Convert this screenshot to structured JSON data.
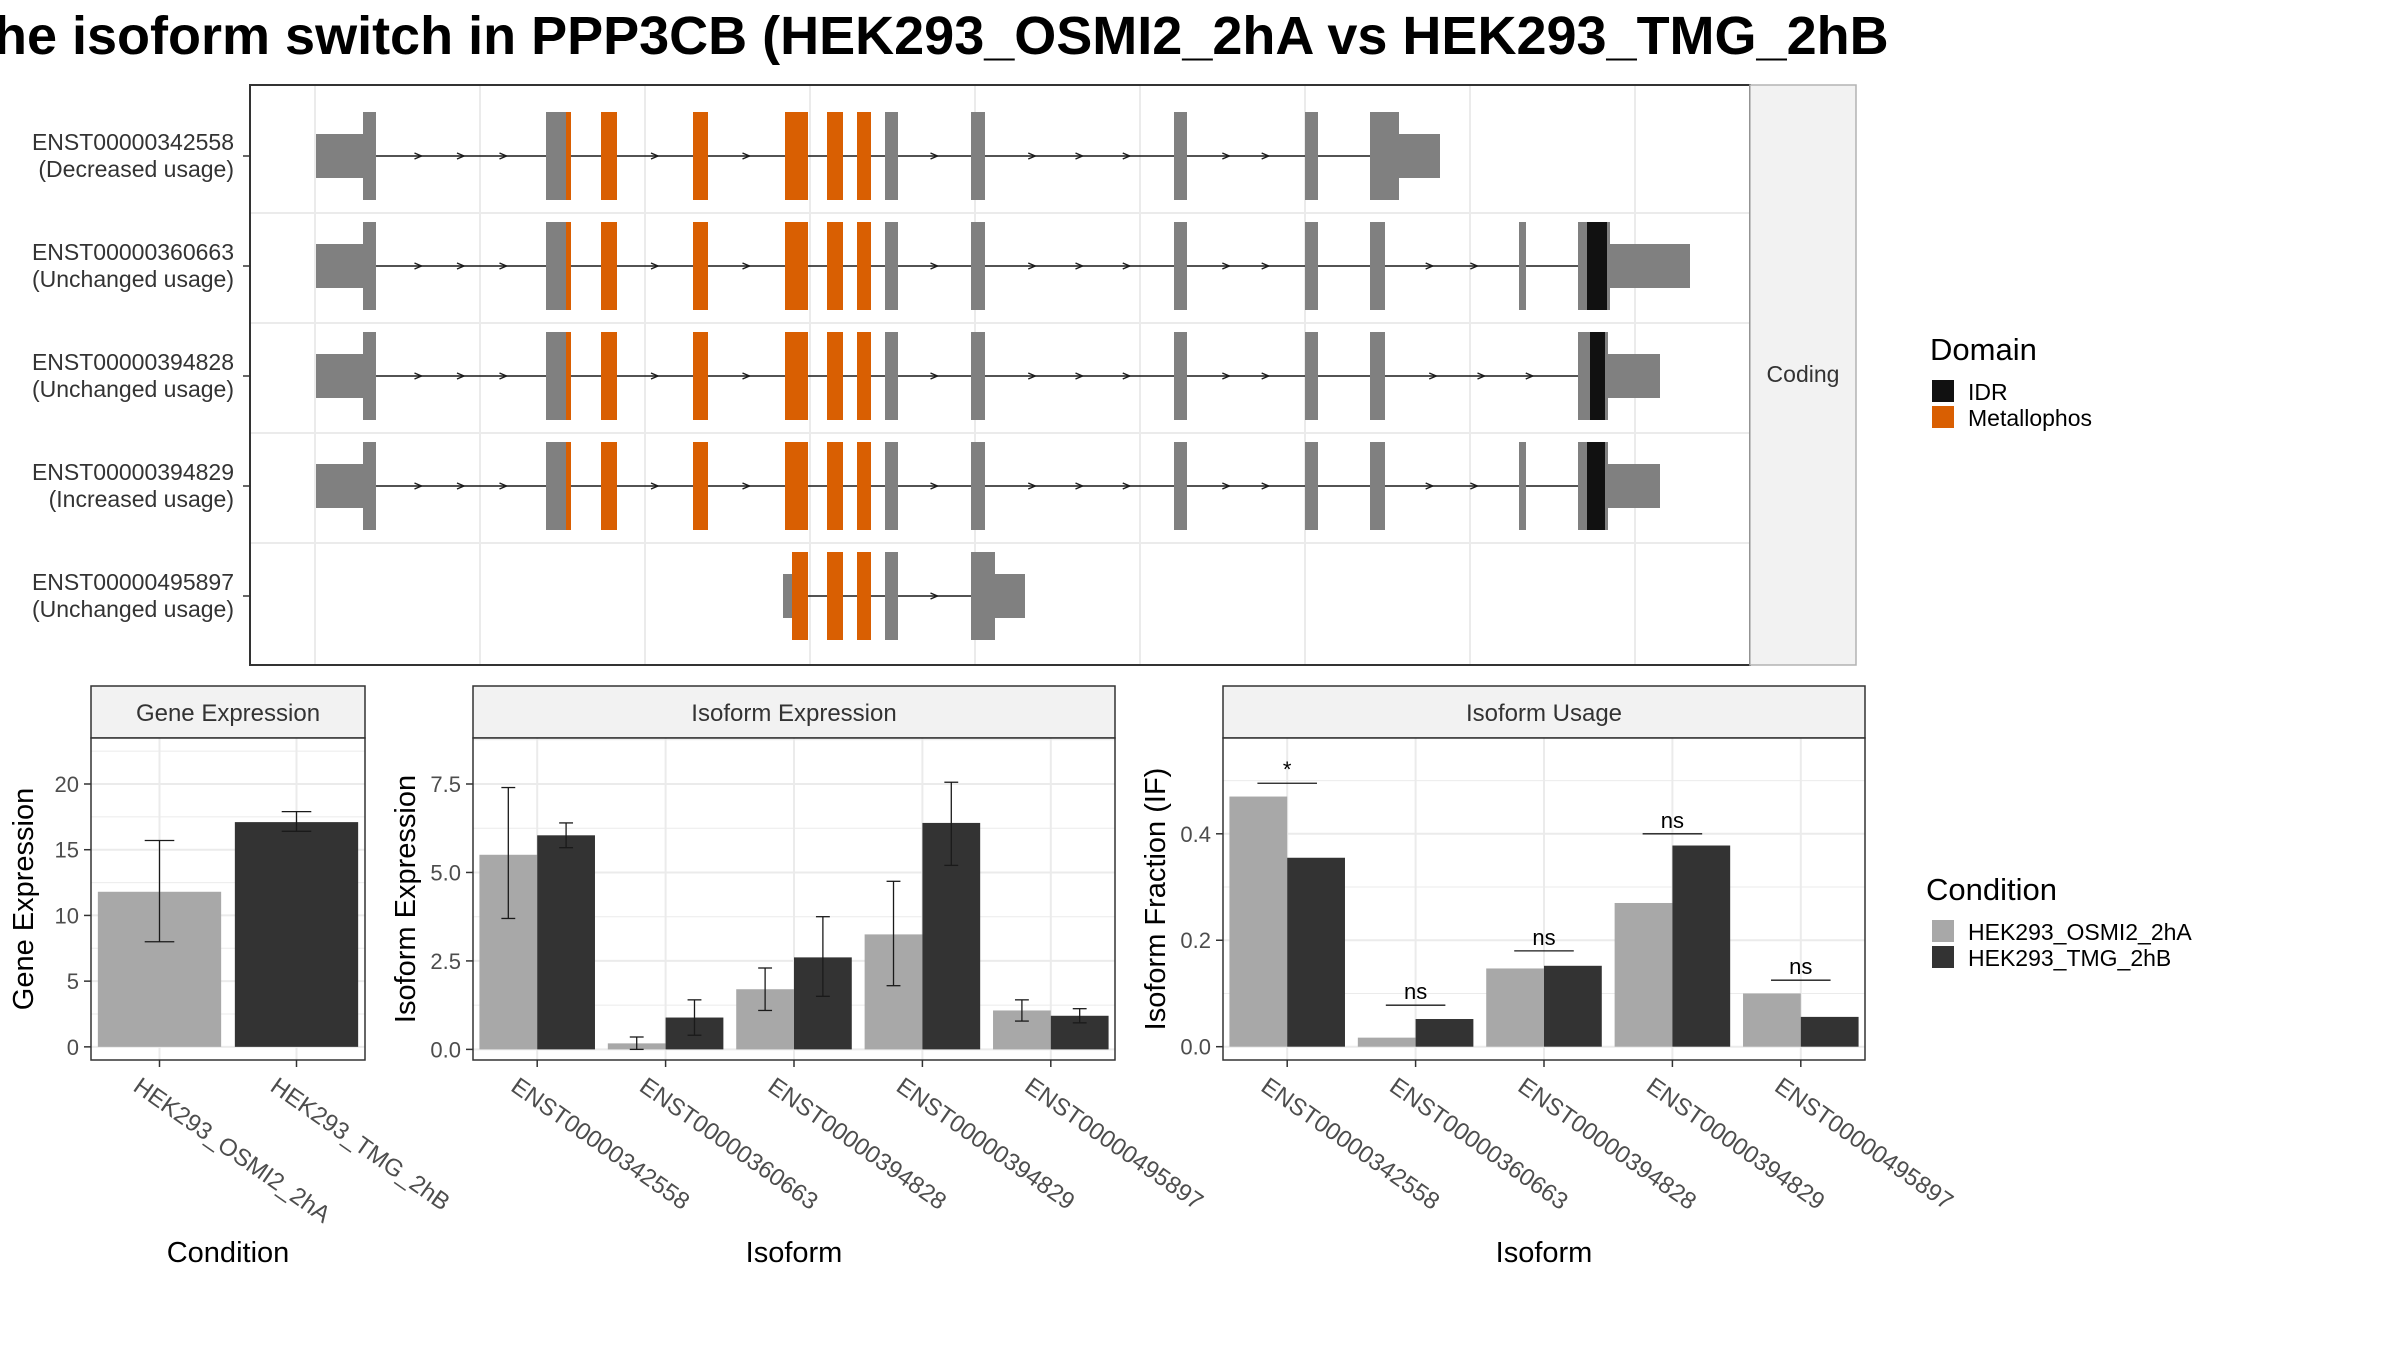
{
  "title": "he isoform switch in PPP3CB (HEK293_OSMI2_2hA vs HEK293_TMG_2hB",
  "colors": {
    "exon": "#808080",
    "idr": "#111111",
    "metallophos": "#d95f02",
    "cond1": "#a8a8a8",
    "cond2": "#333333",
    "grid": "#ebebeb",
    "strip_bg": "#f2f2f2",
    "panel_border": "#333333"
  },
  "structure": {
    "panel_label": "Coding",
    "transcripts": [
      {
        "id": "ENST00000342558",
        "usage": "(Decreased usage)"
      },
      {
        "id": "ENST00000360663",
        "usage": "(Unchanged usage)"
      },
      {
        "id": "ENST00000394828",
        "usage": "(Unchanged usage)"
      },
      {
        "id": "ENST00000394829",
        "usage": "(Increased usage)"
      },
      {
        "id": "ENST00000495897",
        "usage": "(Unchanged usage)"
      }
    ]
  },
  "legend_domain": {
    "title": "Domain",
    "items": [
      {
        "label": "IDR",
        "color": "#111111"
      },
      {
        "label": "Metallophos",
        "color": "#d95f02"
      }
    ]
  },
  "legend_condition": {
    "title": "Condition",
    "items": [
      {
        "label": "HEK293_OSMI2_2hA",
        "color": "#a8a8a8"
      },
      {
        "label": "HEK293_TMG_2hB",
        "color": "#333333"
      }
    ]
  },
  "chart_data": [
    {
      "type": "bar",
      "strip": "Gene Expression",
      "xlabel": "Condition",
      "ylabel": "Gene Expression",
      "categories": [
        "HEK293_OSMI2_2hA",
        "HEK293_TMG_2hB"
      ],
      "values": [
        11.8,
        17.1
      ],
      "err_low": [
        8.0,
        16.4
      ],
      "err_high": [
        15.7,
        17.9
      ],
      "ylim": [
        -1,
        23.5
      ],
      "yticks": [
        0,
        5,
        10,
        15,
        20
      ],
      "ytick_labels": [
        "0",
        "5",
        "10",
        "15",
        "20"
      ]
    },
    {
      "type": "bar",
      "strip": "Isoform Expression",
      "xlabel": "Isoform",
      "ylabel": "Isoform Expression",
      "categories": [
        "ENST00000342558",
        "ENST00000360663",
        "ENST00000394828",
        "ENST00000394829",
        "ENST00000495897"
      ],
      "series": [
        {
          "name": "HEK293_OSMI2_2hA",
          "values": [
            5.5,
            0.17,
            1.7,
            3.25,
            1.1
          ],
          "err_low": [
            3.7,
            0.0,
            1.1,
            1.8,
            0.8
          ],
          "err_high": [
            7.4,
            0.35,
            2.3,
            4.75,
            1.4
          ]
        },
        {
          "name": "HEK293_TMG_2hB",
          "values": [
            6.05,
            0.9,
            2.6,
            6.4,
            0.95
          ],
          "err_low": [
            5.7,
            0.4,
            1.5,
            5.2,
            0.75
          ],
          "err_high": [
            6.4,
            1.4,
            3.75,
            7.55,
            1.15
          ]
        }
      ],
      "ylim": [
        -0.3,
        8.8
      ],
      "yticks": [
        0,
        2.5,
        5,
        7.5
      ],
      "ytick_labels": [
        "0.0",
        "2.5",
        "5.0",
        "7.5"
      ]
    },
    {
      "type": "bar",
      "strip": "Isoform Usage",
      "xlabel": "Isoform",
      "ylabel": "Isoform Fraction (IF)",
      "categories": [
        "ENST00000342558",
        "ENST00000360663",
        "ENST00000394828",
        "ENST00000394829",
        "ENST00000495897"
      ],
      "series": [
        {
          "name": "HEK293_OSMI2_2hA",
          "values": [
            0.47,
            0.017,
            0.147,
            0.27,
            0.1
          ]
        },
        {
          "name": "HEK293_TMG_2hB",
          "values": [
            0.355,
            0.052,
            0.152,
            0.378,
            0.056
          ]
        }
      ],
      "significance": [
        "*",
        "ns",
        "ns",
        "ns",
        "ns"
      ],
      "sig_level": [
        0.495,
        0.078,
        0.18,
        0.4,
        0.125
      ],
      "ylim": [
        -0.025,
        0.58
      ],
      "yticks": [
        0,
        0.2,
        0.4
      ],
      "ytick_labels": [
        "0.0",
        "0.2",
        "0.4"
      ]
    }
  ]
}
